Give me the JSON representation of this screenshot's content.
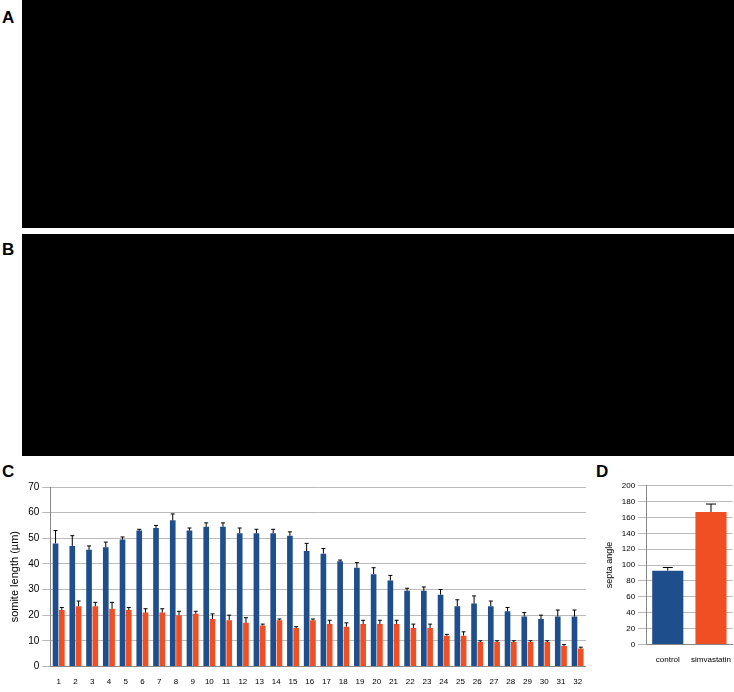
{
  "images": [
    {
      "label": "A"
    },
    {
      "label": "B"
    }
  ],
  "chart_data": [
    {
      "type": "bar",
      "annotations": [
        "C"
      ],
      "y_label": "somite length (µm)",
      "categories": [
        1,
        2,
        3,
        4,
        5,
        6,
        7,
        8,
        9,
        10,
        11,
        12,
        13,
        14,
        15,
        16,
        17,
        18,
        19,
        20,
        21,
        22,
        23,
        24,
        25,
        26,
        27,
        28,
        29,
        30,
        31,
        32
      ],
      "series": [
        {
          "color": "#1f4e8c",
          "values": [
            48,
            47,
            45.5,
            46.5,
            49.5,
            53,
            54,
            57,
            53,
            54.5,
            54.5,
            52,
            52,
            52,
            51,
            45,
            44,
            41,
            38.5,
            36,
            33.5,
            29.5,
            29.5,
            28,
            23.5,
            24.5,
            23.5,
            21.5,
            19.5,
            18.5,
            19.5,
            19.5
          ],
          "errors": [
            5,
            4,
            1.5,
            2,
            1,
            0.5,
            1,
            2.5,
            1,
            1.5,
            1.5,
            2,
            1.5,
            1.5,
            1.5,
            3,
            2,
            0.5,
            2,
            2.5,
            2,
            1,
            1.5,
            2,
            2.5,
            3,
            2,
            1.5,
            1.5,
            1.5,
            2.5,
            2.5
          ]
        },
        {
          "color": "#f04e23",
          "values": [
            22,
            23.5,
            23.5,
            22.5,
            22,
            21,
            21,
            20,
            20.5,
            18.5,
            18,
            17,
            16,
            18,
            15,
            18,
            16.5,
            15.5,
            16.5,
            16.5,
            16.5,
            15,
            15,
            12,
            12,
            9.5,
            9.5,
            9.5,
            9.5,
            9.5,
            8,
            7
          ],
          "errors": [
            1,
            2,
            1.5,
            2.5,
            1,
            1.5,
            1.5,
            1.5,
            1,
            2,
            2,
            2,
            0.5,
            0.5,
            0.5,
            0.5,
            1.5,
            1.5,
            1.5,
            1.5,
            1.5,
            1.5,
            1.5,
            0.5,
            1.5,
            0.5,
            0.5,
            0.5,
            0.5,
            0.5,
            0.5,
            0.5
          ]
        }
      ],
      "ylim": [
        0,
        70
      ],
      "yticks": [
        0,
        10,
        20,
        30,
        40,
        50,
        60,
        70
      ],
      "grid": true
    },
    {
      "type": "bar",
      "annotations": [
        "D"
      ],
      "y_label": "septa angle",
      "categories": [
        "control",
        "simvastatin"
      ],
      "values": [
        93,
        167
      ],
      "errors": [
        4,
        10
      ],
      "colors": [
        "#1f4e8c",
        "#f04e23"
      ],
      "ylim": [
        0,
        200
      ],
      "yticks": [
        0,
        20,
        40,
        60,
        80,
        100,
        120,
        140,
        160,
        180,
        200
      ],
      "grid": true
    }
  ]
}
